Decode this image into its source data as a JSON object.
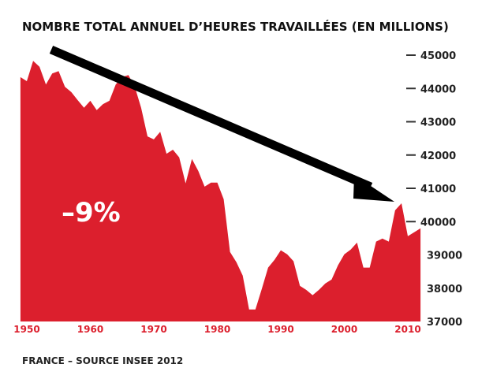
{
  "chart_data": {
    "type": "area",
    "title": "NOMBRE TOTAL ANNUEL D’HEURES TRAVAILLÉES (EN MILLIONS)",
    "xlabel": "",
    "ylabel": "",
    "ylim": [
      37000,
      45000
    ],
    "xlim": [
      1949,
      2012
    ],
    "y_ticks": [
      "45000",
      "44000",
      "43000",
      "42000",
      "41000",
      "40000",
      "39000",
      "38000",
      "37000"
    ],
    "x_ticks": [
      "1950",
      "1960",
      "1970",
      "1980",
      "1990",
      "2000",
      "2010"
    ],
    "grid": false,
    "color": "#dc1f2d",
    "annotation": "–9%",
    "arrow": {
      "from_year": 1953,
      "to_year": 2008,
      "meaning": "downward trend"
    },
    "x": [
      1949,
      1950,
      1951,
      1952,
      1953,
      1954,
      1955,
      1956,
      1957,
      1958,
      1959,
      1960,
      1961,
      1962,
      1963,
      1964,
      1965,
      1966,
      1967,
      1968,
      1969,
      1970,
      1971,
      1972,
      1973,
      1974,
      1975,
      1976,
      1977,
      1978,
      1979,
      1980,
      1981,
      1982,
      1983,
      1984,
      1985,
      1986,
      1987,
      1988,
      1989,
      1990,
      1991,
      1992,
      1993,
      1994,
      1995,
      1996,
      1997,
      1998,
      1999,
      2000,
      2001,
      2002,
      2003,
      2004,
      2005,
      2006,
      2007,
      2008,
      2009,
      2010,
      2011,
      2012
    ],
    "values": [
      44340,
      44220,
      44830,
      44650,
      44120,
      44450,
      44520,
      44050,
      43890,
      43650,
      43420,
      43630,
      43350,
      43530,
      43630,
      44120,
      44340,
      44400,
      44050,
      43420,
      42560,
      42470,
      42700,
      42040,
      42160,
      41930,
      41150,
      41880,
      41520,
      41050,
      41170,
      41170,
      40670,
      39090,
      38780,
      38380,
      37360,
      37360,
      37980,
      38620,
      38850,
      39140,
      39020,
      38810,
      38070,
      37950,
      37790,
      37950,
      38140,
      38260,
      38690,
      39020,
      39160,
      39370,
      38620,
      38620,
      39400,
      39490,
      39400,
      40340,
      40550,
      39560,
      39680,
      39800
    ]
  },
  "footer": "FRANCE – SOURCE INSEE 2012"
}
